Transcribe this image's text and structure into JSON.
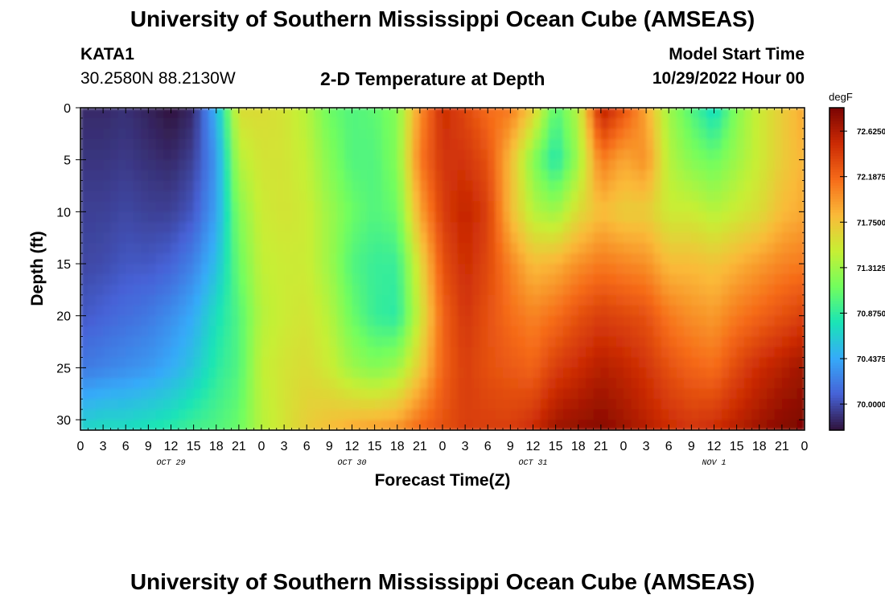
{
  "header": {
    "title": "University of Southern Mississippi Ocean Cube (AMSEAS)",
    "station": "KATA1",
    "location": "30.2580N  88.2130W",
    "plot_title": "2-D Temperature at Depth",
    "model_start_label": "Model Start Time",
    "model_start_value": "10/29/2022 Hour 00"
  },
  "footer": {
    "title_repeat": "University of Southern Mississippi Ocean Cube (AMSEAS)"
  },
  "chart_data": {
    "type": "heatmap",
    "title": "2-D Temperature at Depth",
    "xlabel": "Forecast Time(Z)",
    "ylabel": "Depth (ft)",
    "x_tick_labels": [
      "0",
      "3",
      "6",
      "9",
      "12",
      "15",
      "18",
      "21",
      "0",
      "3",
      "6",
      "9",
      "12",
      "15",
      "18",
      "21",
      "0",
      "3",
      "6",
      "9",
      "12",
      "15",
      "18",
      "21",
      "0",
      "3",
      "6",
      "9",
      "12",
      "15",
      "18",
      "21",
      "0"
    ],
    "day_labels": [
      "OCT 29",
      "OCT 30",
      "OCT 31",
      "NOV 1"
    ],
    "y_ticks": [
      0,
      5,
      10,
      15,
      20,
      25,
      30
    ],
    "ylim": [
      0,
      31
    ],
    "xlim_hours": [
      0,
      96
    ],
    "colorbar": {
      "unit": "degF",
      "min": 69.75,
      "max": 72.85,
      "tick_labels": [
        "72.6250",
        "72.1875",
        "71.7500",
        "71.3125",
        "70.8750",
        "70.4375",
        "70.0000"
      ],
      "tick_values": [
        72.625,
        72.1875,
        71.75,
        71.3125,
        70.875,
        70.4375,
        70.0
      ],
      "colors": [
        "#30123b",
        "#4662d7",
        "#36aaf9",
        "#1ae4b6",
        "#72fe5e",
        "#c7ef34",
        "#faba39",
        "#f66b19",
        "#cb2a04",
        "#7a0403"
      ]
    },
    "temperature_profiles": {
      "depths_ft": [
        0,
        5,
        10,
        15,
        20,
        25,
        31
      ],
      "time_hours": [
        0,
        3,
        6,
        9,
        12,
        15,
        18,
        21,
        24,
        27,
        30,
        33,
        36,
        39,
        42,
        45,
        48,
        51,
        54,
        57,
        60,
        63,
        66,
        69,
        72,
        75,
        78,
        81,
        84,
        87,
        90,
        93,
        96
      ],
      "values": [
        [
          69.85,
          69.9,
          69.95,
          69.98,
          70.05,
          70.2,
          70.7
        ],
        [
          69.85,
          69.9,
          69.95,
          70.0,
          70.1,
          70.25,
          70.75
        ],
        [
          69.88,
          69.92,
          69.98,
          70.05,
          70.15,
          70.3,
          70.75
        ],
        [
          69.82,
          69.88,
          69.95,
          70.05,
          70.2,
          70.35,
          70.8
        ],
        [
          69.75,
          69.85,
          69.95,
          70.1,
          70.3,
          70.45,
          70.85
        ],
        [
          69.85,
          69.95,
          70.05,
          70.25,
          70.45,
          70.6,
          70.95
        ],
        [
          70.5,
          70.35,
          70.4,
          70.55,
          70.75,
          70.85,
          71.0
        ],
        [
          71.6,
          71.4,
          71.2,
          71.1,
          71.0,
          71.0,
          71.1
        ],
        [
          71.6,
          71.55,
          71.5,
          71.45,
          71.4,
          71.45,
          71.4
        ],
        [
          71.55,
          71.55,
          71.55,
          71.5,
          71.5,
          71.55,
          71.55
        ],
        [
          71.4,
          71.45,
          71.5,
          71.5,
          71.55,
          71.6,
          71.7
        ],
        [
          71.1,
          71.2,
          71.3,
          71.3,
          71.4,
          71.5,
          71.8
        ],
        [
          71.0,
          71.0,
          71.1,
          71.0,
          71.1,
          71.3,
          71.9
        ],
        [
          71.05,
          71.0,
          71.0,
          70.9,
          70.9,
          71.2,
          71.95
        ],
        [
          71.2,
          71.2,
          71.1,
          70.9,
          70.85,
          71.3,
          72.0
        ],
        [
          72.0,
          72.1,
          71.9,
          71.6,
          71.5,
          71.7,
          72.2
        ],
        [
          72.5,
          72.45,
          72.4,
          72.3,
          72.2,
          72.2,
          72.3
        ],
        [
          72.35,
          72.45,
          72.55,
          72.5,
          72.45,
          72.4,
          72.4
        ],
        [
          72.15,
          72.3,
          72.4,
          72.35,
          72.3,
          72.3,
          72.4
        ],
        [
          72.1,
          71.8,
          71.8,
          72.05,
          72.15,
          72.25,
          72.4
        ],
        [
          71.7,
          71.2,
          71.4,
          71.8,
          72.05,
          72.2,
          72.5
        ],
        [
          71.0,
          70.8,
          71.3,
          71.85,
          72.15,
          72.4,
          72.7
        ],
        [
          71.4,
          71.3,
          71.6,
          72.0,
          72.3,
          72.5,
          72.75
        ],
        [
          72.6,
          72.1,
          71.8,
          72.1,
          72.4,
          72.6,
          72.8
        ],
        [
          72.3,
          71.9,
          71.7,
          72.05,
          72.35,
          72.55,
          72.7
        ],
        [
          71.9,
          72.0,
          71.7,
          72.0,
          72.3,
          72.45,
          72.6
        ],
        [
          71.3,
          71.4,
          71.5,
          71.8,
          72.1,
          72.3,
          72.5
        ],
        [
          71.0,
          71.2,
          71.5,
          71.8,
          72.0,
          72.2,
          72.45
        ],
        [
          70.7,
          71.1,
          71.4,
          71.75,
          71.95,
          72.15,
          72.5
        ],
        [
          71.2,
          71.3,
          71.5,
          71.85,
          72.1,
          72.35,
          72.6
        ],
        [
          71.5,
          71.5,
          71.6,
          71.95,
          72.2,
          72.5,
          72.7
        ],
        [
          71.7,
          71.7,
          71.8,
          72.05,
          72.3,
          72.6,
          72.8
        ],
        [
          71.9,
          71.85,
          71.9,
          72.1,
          72.4,
          72.7,
          72.85
        ]
      ]
    }
  }
}
